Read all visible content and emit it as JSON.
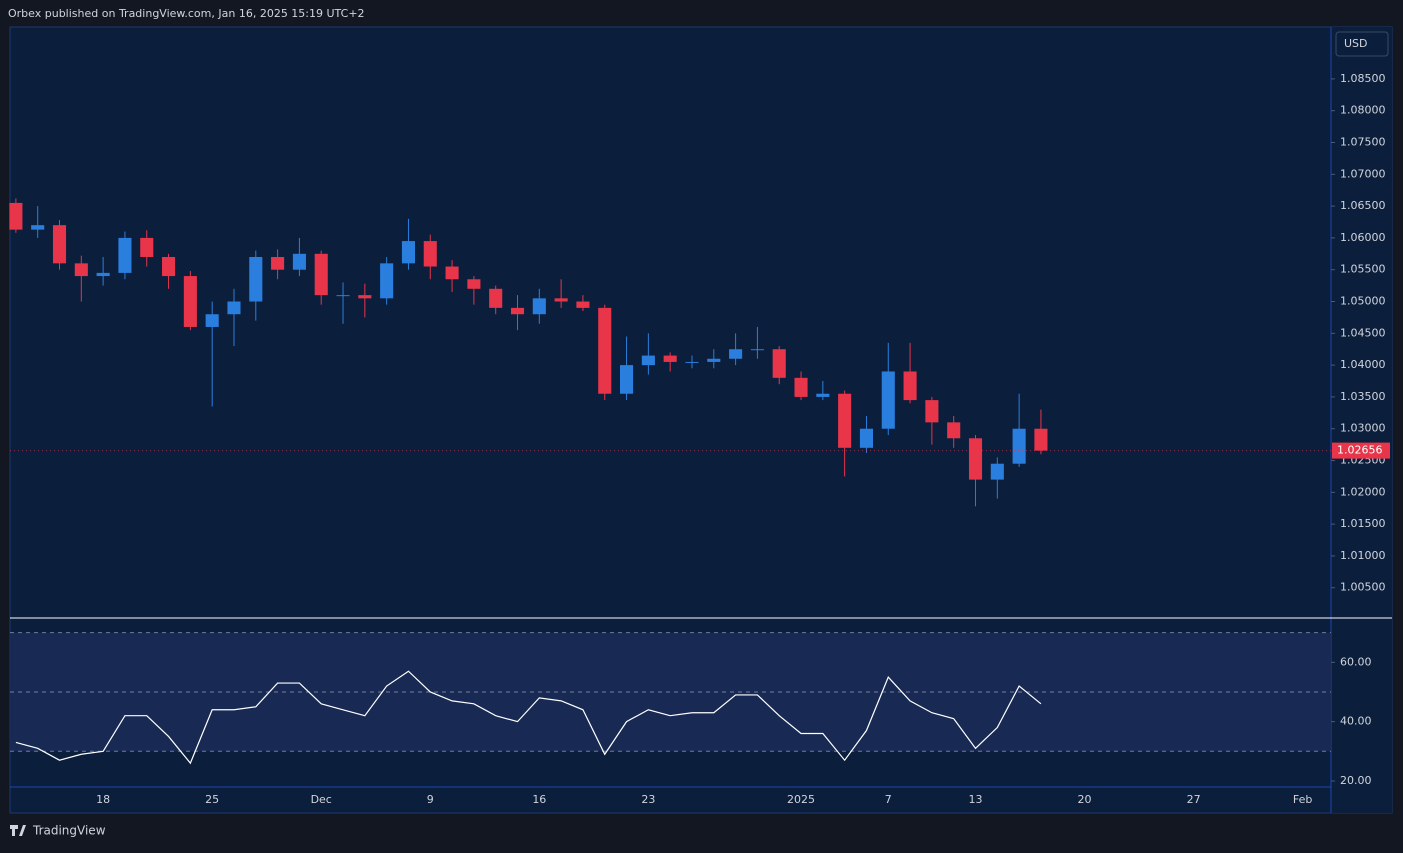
{
  "header": {
    "text": "Orbex published on TradingView.com, Jan 16, 2025 15:19 UTC+2"
  },
  "footer": {
    "brand": "TradingView"
  },
  "chart_data": [
    {
      "type": "candlestick",
      "currency": "USD",
      "up_color": "#2a7fde",
      "down_color": "#e8354a",
      "last_price": 1.02656,
      "xlim": [
        -4.27,
        56.3
      ],
      "ylim": [
        1.0004,
        1.093
      ],
      "yticks": [
        {
          "value": 1.005,
          "label": "1.00500"
        },
        {
          "value": 1.01,
          "label": "1.01000"
        },
        {
          "value": 1.015,
          "label": "1.01500"
        },
        {
          "value": 1.02,
          "label": "1.02000"
        },
        {
          "value": 1.025,
          "label": "1.02500"
        },
        {
          "value": 1.03,
          "label": "1.03000"
        },
        {
          "value": 1.035,
          "label": "1.03500"
        },
        {
          "value": 1.04,
          "label": "1.04000"
        },
        {
          "value": 1.045,
          "label": "1.04500"
        },
        {
          "value": 1.05,
          "label": "1.05000"
        },
        {
          "value": 1.055,
          "label": "1.05500"
        },
        {
          "value": 1.06,
          "label": "1.06000"
        },
        {
          "value": 1.065,
          "label": "1.06500"
        },
        {
          "value": 1.07,
          "label": "1.07000"
        },
        {
          "value": 1.075,
          "label": "1.07500"
        },
        {
          "value": 1.08,
          "label": "1.08000"
        },
        {
          "value": 1.085,
          "label": "1.08500"
        }
      ],
      "x": [
        -4,
        -3,
        -2,
        -1,
        0,
        1,
        2,
        3,
        4,
        5,
        6,
        7,
        8,
        9,
        10,
        11,
        12,
        13,
        14,
        15,
        16,
        17,
        18,
        19,
        20,
        21,
        22,
        23,
        24,
        25,
        26,
        27,
        28,
        29,
        30,
        31,
        32,
        33,
        34,
        35,
        36,
        37,
        38,
        39,
        40,
        41,
        42,
        43
      ],
      "open": [
        1.0655,
        1.0613,
        1.062,
        1.056,
        1.054,
        1.0545,
        1.06,
        1.057,
        1.054,
        1.046,
        1.048,
        1.05,
        1.057,
        1.055,
        1.0575,
        1.051,
        1.051,
        1.0505,
        1.056,
        1.0595,
        1.0555,
        1.0535,
        1.052,
        1.049,
        1.048,
        1.0505,
        1.05,
        1.049,
        1.0355,
        1.04,
        1.0415,
        1.0405,
        1.0405,
        1.041,
        1.0425,
        1.0425,
        1.038,
        1.035,
        1.0355,
        1.027,
        1.03,
        1.039,
        1.0345,
        1.031,
        1.0285,
        1.022,
        1.0245,
        1.03
      ],
      "high": [
        1.0662,
        1.065,
        1.0628,
        1.0572,
        1.057,
        1.061,
        1.0612,
        1.0575,
        1.0548,
        1.05,
        1.052,
        1.058,
        1.0582,
        1.06,
        1.058,
        1.053,
        1.0528,
        1.057,
        1.063,
        1.0605,
        1.0565,
        1.054,
        1.0525,
        1.051,
        1.052,
        1.0535,
        1.051,
        1.0495,
        1.0445,
        1.045,
        1.042,
        1.0415,
        1.0425,
        1.045,
        1.046,
        1.043,
        1.039,
        1.0375,
        1.036,
        1.032,
        1.0435,
        1.0435,
        1.035,
        1.032,
        1.029,
        1.0255,
        1.0355,
        1.033
      ],
      "low": [
        1.0608,
        1.06,
        1.055,
        1.05,
        1.0525,
        1.0535,
        1.0555,
        1.052,
        1.0455,
        1.0335,
        1.043,
        1.047,
        1.0535,
        1.054,
        1.0495,
        1.0465,
        1.0475,
        1.0495,
        1.055,
        1.0535,
        1.0515,
        1.0495,
        1.048,
        1.0455,
        1.0465,
        1.049,
        1.0485,
        1.0345,
        1.0345,
        1.0385,
        1.039,
        1.0395,
        1.0395,
        1.04,
        1.041,
        1.037,
        1.0345,
        1.0345,
        1.0225,
        1.0262,
        1.029,
        1.034,
        1.0275,
        1.027,
        1.0178,
        1.019,
        1.024,
        1.026
      ],
      "close": [
        1.0613,
        1.062,
        1.056,
        1.054,
        1.0545,
        1.06,
        1.057,
        1.054,
        1.046,
        1.048,
        1.05,
        1.057,
        1.055,
        1.0575,
        1.051,
        1.051,
        1.0505,
        1.056,
        1.0595,
        1.0555,
        1.0535,
        1.052,
        1.049,
        1.048,
        1.0505,
        1.05,
        1.049,
        1.0355,
        1.04,
        1.0415,
        1.0405,
        1.0405,
        1.041,
        1.0425,
        1.0425,
        1.038,
        1.035,
        1.0355,
        1.027,
        1.03,
        1.039,
        1.0345,
        1.031,
        1.0285,
        1.022,
        1.0245,
        1.03,
        1.02656
      ]
    },
    {
      "type": "line",
      "color": "#ffffff",
      "levels": [
        70,
        50,
        30
      ],
      "xlim": [
        -4.27,
        56.3
      ],
      "xticks": [
        {
          "value": 0,
          "label": "18"
        },
        {
          "value": 5,
          "label": "25"
        },
        {
          "value": 10,
          "label": "Dec"
        },
        {
          "value": 15,
          "label": "9"
        },
        {
          "value": 20,
          "label": "16"
        },
        {
          "value": 25,
          "label": "23"
        },
        {
          "value": 32,
          "label": "2025"
        },
        {
          "value": 36,
          "label": "7"
        },
        {
          "value": 40,
          "label": "13"
        },
        {
          "value": 45,
          "label": "20"
        },
        {
          "value": 50,
          "label": "27"
        },
        {
          "value": 55,
          "label": "Feb"
        }
      ],
      "ylim": [
        18.3,
        74.6
      ],
      "yticks": [
        {
          "value": 20,
          "label": "20.00"
        },
        {
          "value": 40,
          "label": "40.00"
        },
        {
          "value": 60,
          "label": "60.00"
        }
      ],
      "x": [
        -4,
        -3,
        -2,
        -1,
        0,
        1,
        2,
        3,
        4,
        5,
        6,
        7,
        8,
        9,
        10,
        11,
        12,
        13,
        14,
        15,
        16,
        17,
        18,
        19,
        20,
        21,
        22,
        23,
        24,
        25,
        26,
        27,
        28,
        29,
        30,
        31,
        32,
        33,
        34,
        35,
        36,
        37,
        38,
        39,
        40,
        41,
        42,
        43
      ],
      "values": [
        33,
        31,
        27,
        29,
        30,
        42,
        42,
        35,
        26,
        44,
        44,
        45,
        53,
        53,
        46,
        44,
        42,
        52,
        57,
        50,
        47,
        46,
        42,
        40,
        48,
        47,
        44,
        29,
        40,
        44,
        42,
        43,
        43,
        49,
        49,
        42,
        36,
        36,
        27,
        37,
        55,
        47,
        43,
        41,
        31,
        38,
        52,
        46
      ]
    }
  ]
}
